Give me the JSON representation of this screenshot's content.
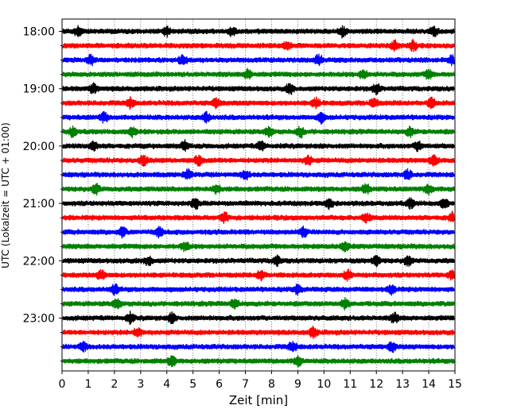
{
  "chart_data": {
    "type": "line",
    "title": "",
    "xlabel": "Zeit  [min]",
    "ylabel": "UTC (Lokalzeit = UTC + 01:00)",
    "xlim": [
      0,
      15
    ],
    "x_ticks": [
      "0",
      "1",
      "2",
      "3",
      "4",
      "5",
      "6",
      "7",
      "8",
      "9",
      "10",
      "11",
      "12",
      "13",
      "14",
      "15"
    ],
    "y_tick_labels": [
      "18:00",
      "19:00",
      "20:00",
      "21:00",
      "22:00",
      "23:00"
    ],
    "row_start": "18:00",
    "row_interval_minutes": 15,
    "row_count": 24,
    "grid": "vertical dotted at each minute",
    "color_cycle": [
      "#000000",
      "#ff0000",
      "#0000ff",
      "#008000"
    ],
    "series": [
      {
        "label": "18:00",
        "color": "#000000",
        "events_min": [
          0.6,
          4.0,
          6.5,
          10.7,
          14.2
        ]
      },
      {
        "label": "18:15",
        "color": "#ff0000",
        "events_min": [
          8.6,
          12.7,
          13.4
        ]
      },
      {
        "label": "18:30",
        "color": "#0000ff",
        "events_min": [
          1.1,
          4.6,
          9.8,
          14.9
        ]
      },
      {
        "label": "18:45",
        "color": "#008000",
        "events_min": [
          7.1,
          11.5,
          14.0
        ]
      },
      {
        "label": "19:00",
        "color": "#000000",
        "events_min": [
          1.2,
          8.7,
          12.0
        ]
      },
      {
        "label": "19:15",
        "color": "#ff0000",
        "events_min": [
          2.6,
          5.9,
          9.7,
          11.9,
          14.1
        ]
      },
      {
        "label": "19:30",
        "color": "#0000ff",
        "events_min": [
          1.6,
          5.5,
          9.9
        ]
      },
      {
        "label": "19:45",
        "color": "#008000",
        "events_min": [
          0.4,
          2.7,
          7.9,
          9.1,
          13.3
        ]
      },
      {
        "label": "20:00",
        "color": "#000000",
        "events_min": [
          1.2,
          4.7,
          7.6,
          13.6
        ]
      },
      {
        "label": "20:15",
        "color": "#ff0000",
        "events_min": [
          3.1,
          5.2,
          9.4,
          14.2
        ]
      },
      {
        "label": "20:30",
        "color": "#0000ff",
        "events_min": [
          4.8,
          7.0,
          13.2
        ]
      },
      {
        "label": "20:45",
        "color": "#008000",
        "events_min": [
          1.3,
          5.9,
          11.6,
          14.0
        ]
      },
      {
        "label": "21:00",
        "color": "#000000",
        "events_min": [
          5.1,
          10.2,
          13.3,
          14.6
        ]
      },
      {
        "label": "21:15",
        "color": "#ff0000",
        "events_min": [
          6.2,
          11.6,
          14.9
        ]
      },
      {
        "label": "21:30",
        "color": "#0000ff",
        "events_min": [
          2.3,
          3.7,
          9.2
        ]
      },
      {
        "label": "21:45",
        "color": "#008000",
        "events_min": [
          4.7,
          10.8
        ]
      },
      {
        "label": "22:00",
        "color": "#000000",
        "events_min": [
          3.3,
          8.2,
          12.0,
          13.2
        ]
      },
      {
        "label": "22:15",
        "color": "#ff0000",
        "events_min": [
          1.5,
          7.6,
          10.9,
          14.9
        ]
      },
      {
        "label": "22:30",
        "color": "#0000ff",
        "events_min": [
          2.0,
          9.0,
          12.6
        ]
      },
      {
        "label": "22:45",
        "color": "#008000",
        "events_min": [
          2.1,
          6.6,
          10.8
        ]
      },
      {
        "label": "23:00",
        "color": "#000000",
        "events_min": [
          2.6,
          4.2,
          12.7
        ]
      },
      {
        "label": "23:15",
        "color": "#ff0000",
        "events_min": [
          2.9,
          9.6
        ]
      },
      {
        "label": "23:30",
        "color": "#0000ff",
        "events_min": [
          0.8,
          8.8,
          12.6
        ]
      },
      {
        "label": "23:45",
        "color": "#008000",
        "events_min": [
          4.2,
          9.0
        ]
      }
    ]
  }
}
